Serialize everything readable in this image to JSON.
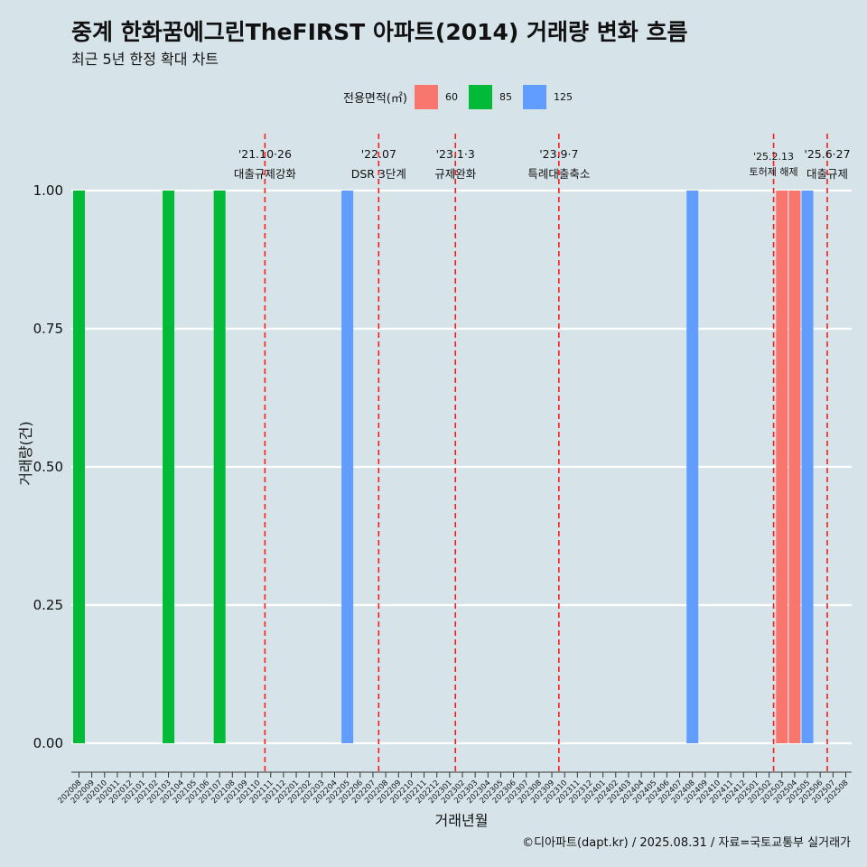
{
  "title": "중계 한화꿈에그린TheFIRST 아파트(2014) 거래량 변화 흐름",
  "subtitle": "최근 5년 한정 확대 차트",
  "caption": "©디아파트(dapt.kr) / 2025.08.31 / 자료=국토교통부 실거래가",
  "legend": {
    "title": "전용면적(㎡)",
    "items": [
      {
        "label": "60",
        "color": "#f8766d"
      },
      {
        "label": "85",
        "color": "#00ba38"
      },
      {
        "label": "125",
        "color": "#619cff"
      }
    ]
  },
  "chart_data": {
    "type": "bar",
    "title": "중계 한화꿈에그린TheFIRST 아파트(2014) 거래량 변화 흐름",
    "subtitle": "최근 5년 한정 확대 차트",
    "xlabel": "거래년월",
    "ylabel": "거래량(건)",
    "ylim": [
      0,
      1
    ],
    "yticks": [
      "0.00",
      "0.25",
      "0.50",
      "0.75",
      "1.00"
    ],
    "grid": true,
    "legend_position": "top",
    "categories": [
      "202008",
      "202009",
      "202010",
      "202011",
      "202012",
      "202101",
      "202102",
      "202103",
      "202104",
      "202105",
      "202106",
      "202107",
      "202108",
      "202109",
      "202110",
      "202111",
      "202112",
      "202201",
      "202202",
      "202203",
      "202204",
      "202205",
      "202206",
      "202207",
      "202208",
      "202209",
      "202210",
      "202211",
      "202212",
      "202301",
      "202302",
      "202303",
      "202304",
      "202305",
      "202306",
      "202307",
      "202308",
      "202309",
      "202310",
      "202311",
      "202312",
      "202401",
      "202402",
      "202403",
      "202404",
      "202405",
      "202406",
      "202407",
      "202408",
      "202409",
      "202410",
      "202411",
      "202412",
      "202501",
      "202502",
      "202503",
      "202504",
      "202505",
      "202506",
      "202507",
      "202508"
    ],
    "bars": [
      {
        "month": "202008",
        "area": "85",
        "value": 1
      },
      {
        "month": "202103",
        "area": "85",
        "value": 1
      },
      {
        "month": "202107",
        "area": "85",
        "value": 1
      },
      {
        "month": "202205",
        "area": "125",
        "value": 1
      },
      {
        "month": "202408",
        "area": "125",
        "value": 1
      },
      {
        "month": "202503",
        "area": "60",
        "value": 1
      },
      {
        "month": "202504",
        "area": "60",
        "value": 1
      },
      {
        "month": "202505",
        "area": "125",
        "value": 1
      }
    ],
    "annotations": [
      {
        "month": "202110",
        "offset": 0.55,
        "date": "'21.10·26",
        "label": "대출규제강화",
        "small": false
      },
      {
        "month": "202207",
        "offset": 0.45,
        "date": "'22.07",
        "label": "DSR 3단계",
        "small": false
      },
      {
        "month": "202301",
        "offset": 0.45,
        "date": "'23.1·3",
        "label": "규제완화",
        "small": false
      },
      {
        "month": "202309",
        "offset": 0.55,
        "date": "'23.9·7",
        "label": "특례대출축소",
        "small": false
      },
      {
        "month": "202502",
        "offset": 0.35,
        "date": "'25.2.13",
        "label": "토허제 해제",
        "small": true
      },
      {
        "month": "202506",
        "offset": 0.55,
        "date": "'25.6·27",
        "label": "대출규제",
        "small": false
      }
    ]
  }
}
